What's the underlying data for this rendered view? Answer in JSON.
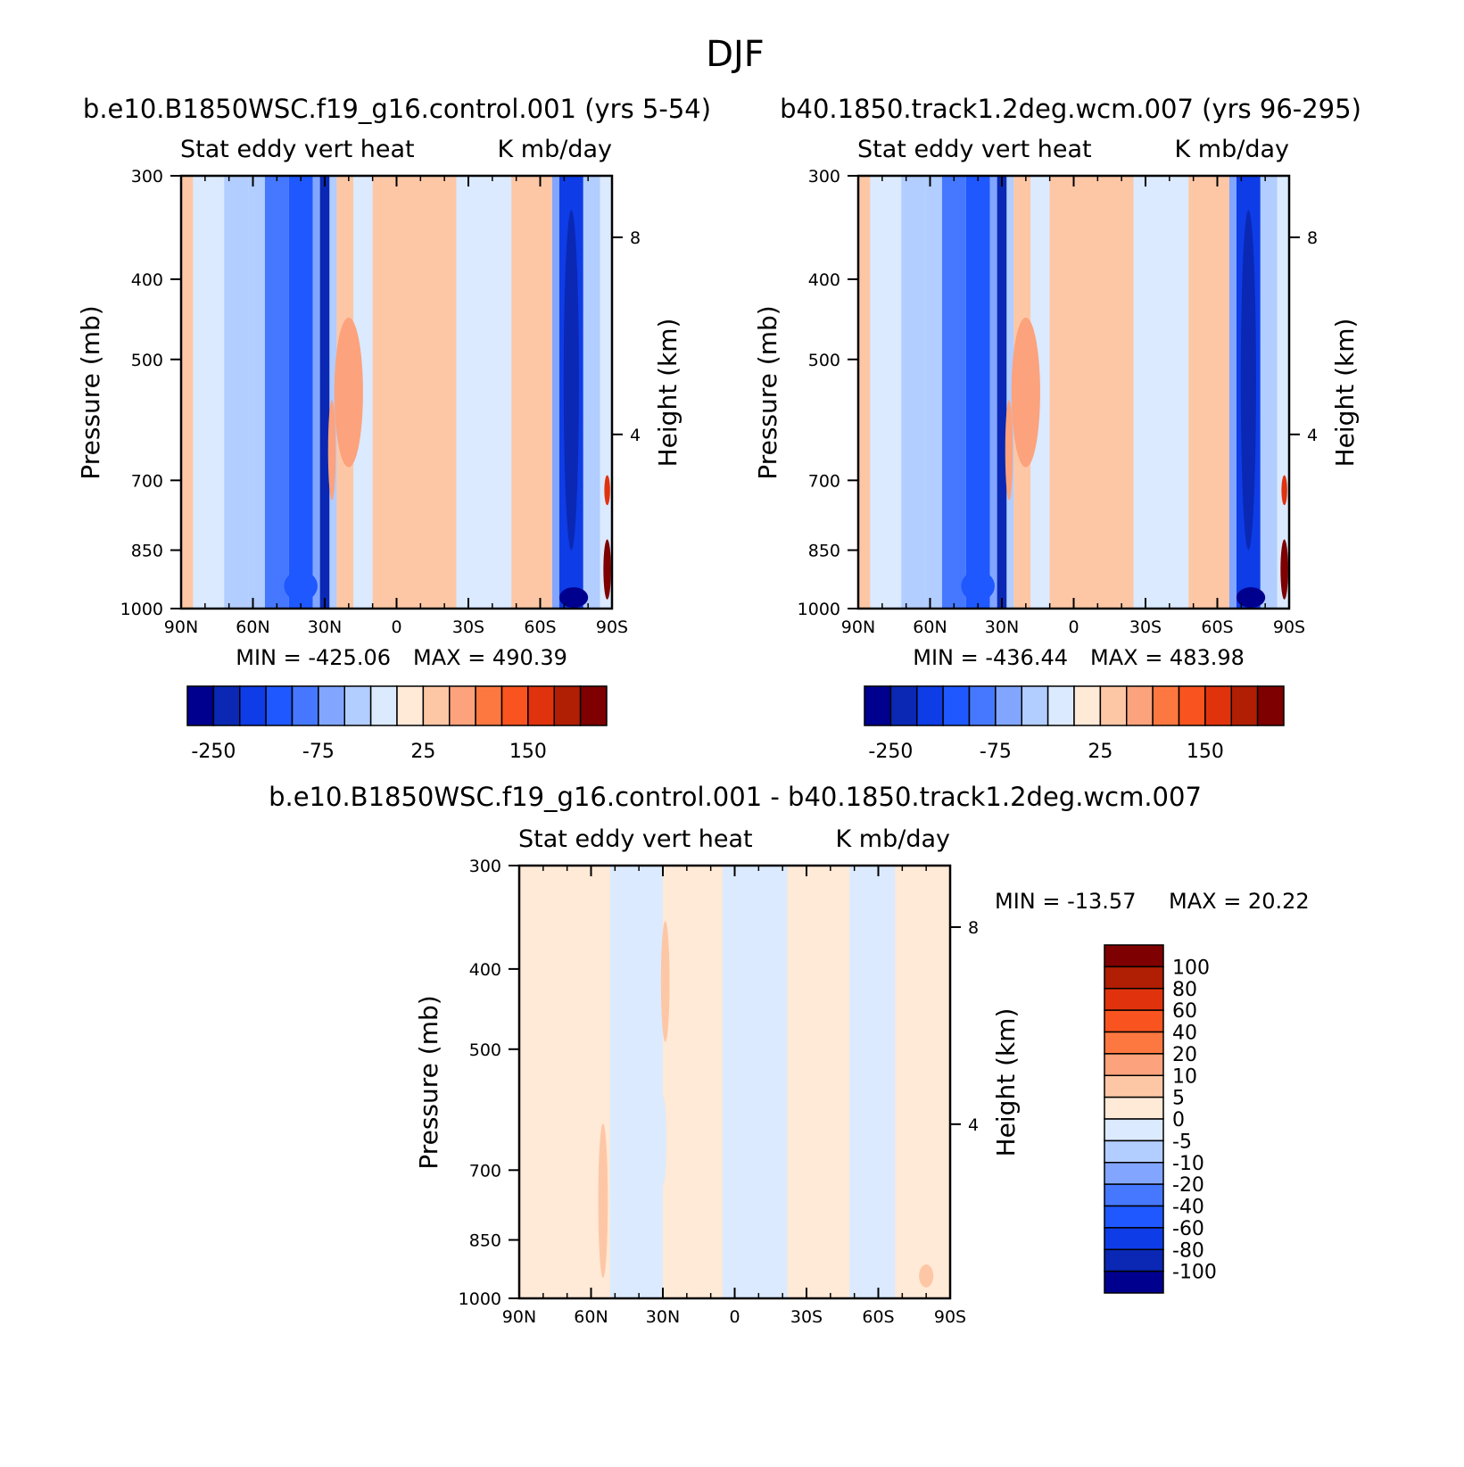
{
  "figure_title": "DJF",
  "colors": {
    "frame": "#000000",
    "cb_full": [
      "#00008f",
      "#0a28b4",
      "#0e3ce6",
      "#1f58ff",
      "#4678ff",
      "#82a6ff",
      "#b2cdff",
      "#dbeaff",
      "#ffe9d7",
      "#fdc7a6",
      "#fca27c",
      "#fd7840",
      "#f9541f",
      "#e0330d",
      "#b01e04",
      "#7e0000"
    ],
    "cb_diff": [
      "#00008f",
      "#0a28b4",
      "#0e3ce6",
      "#1f58ff",
      "#4678ff",
      "#82a6ff",
      "#b2cdff",
      "#dbeaff",
      "#ffe9d7",
      "#fdc7a6",
      "#fca27c",
      "#fd7840",
      "#f9541f",
      "#e0330d",
      "#b01e04",
      "#7e0000"
    ]
  },
  "chart_data": [
    {
      "id": "panel1",
      "type": "heatmap",
      "title": "b.e10.B1850WSC.f19_g16.control.001 (yrs 5-54)",
      "subtitle_left": "Stat eddy vert heat",
      "subtitle_right": "K mb/day",
      "ylabel": "Pressure (mb)",
      "ylabel_right": "Height (km)",
      "x_ticks": [
        "90N",
        "60N",
        "30N",
        "0",
        "30S",
        "60S",
        "90S"
      ],
      "x_range": [
        90,
        -90
      ],
      "y_ticks": [
        "300",
        "400",
        "500",
        "700",
        "850",
        "1000"
      ],
      "y_range": [
        300,
        1000
      ],
      "height_ticks": [
        "8",
        "4"
      ],
      "min_label": "MIN = -425.06",
      "max_label": "MAX = 490.39",
      "colorbar_labels": [
        "-250",
        "-75",
        "25",
        "150"
      ],
      "bands": [
        {
          "lat_from": 90,
          "lat_to": 85,
          "value": 10
        },
        {
          "lat_from": 85,
          "lat_to": 80,
          "value": -3
        },
        {
          "lat_from": 80,
          "lat_to": 72,
          "value": -5
        },
        {
          "lat_from": 72,
          "lat_to": 62,
          "value": -12
        },
        {
          "lat_from": 62,
          "lat_to": 55,
          "value": -20
        },
        {
          "lat_from": 55,
          "lat_to": 45,
          "value": -45
        },
        {
          "lat_from": 45,
          "lat_to": 35,
          "value": -80
        },
        {
          "lat_from": 35,
          "lat_to": 32,
          "value": -35
        },
        {
          "lat_from": 32,
          "lat_to": 28,
          "value": -200
        },
        {
          "lat_from": 28,
          "lat_to": 25,
          "value": -10
        },
        {
          "lat_from": 25,
          "lat_to": 18,
          "value": 8
        },
        {
          "lat_from": 18,
          "lat_to": 10,
          "value": -5
        },
        {
          "lat_from": 10,
          "lat_to": -25,
          "value": 10
        },
        {
          "lat_from": -25,
          "lat_to": -48,
          "value": -5
        },
        {
          "lat_from": -48,
          "lat_to": -65,
          "value": 10
        },
        {
          "lat_from": -65,
          "lat_to": -68,
          "value": -35
        },
        {
          "lat_from": -68,
          "lat_to": -78,
          "value": -150
        },
        {
          "lat_from": -78,
          "lat_to": -85,
          "value": -20
        },
        {
          "lat_from": -85,
          "lat_to": -90,
          "value": -5
        }
      ],
      "blobs": [
        {
          "lat": 20,
          "p": 560,
          "w_deg": 6,
          "h_mb": 230,
          "value": 45
        },
        {
          "lat": 27,
          "p": 650,
          "w_deg": 1.6,
          "h_mb": 180,
          "value": 60
        },
        {
          "lat": -73,
          "p": 590,
          "w_deg": 3.2,
          "h_mb": 520,
          "value": -250
        },
        {
          "lat": -74,
          "p": 970,
          "w_deg": 6,
          "h_mb": 55,
          "value": -330
        },
        {
          "lat": -88,
          "p": 900,
          "w_deg": 1.6,
          "h_mb": 150,
          "value": 300
        },
        {
          "lat": -88,
          "p": 720,
          "w_deg": 1.2,
          "h_mb": 60,
          "value": 150
        },
        {
          "lat": 40,
          "p": 940,
          "w_deg": 7,
          "h_mb": 80,
          "value": -120
        }
      ]
    },
    {
      "id": "panel2",
      "type": "heatmap",
      "title": "b40.1850.track1.2deg.wcm.007 (yrs 96-295)",
      "subtitle_left": "Stat eddy vert heat",
      "subtitle_right": "K mb/day",
      "ylabel": "Pressure (mb)",
      "ylabel_right": "Height (km)",
      "x_ticks": [
        "90N",
        "60N",
        "30N",
        "0",
        "30S",
        "60S",
        "90S"
      ],
      "x_range": [
        90,
        -90
      ],
      "y_ticks": [
        "300",
        "400",
        "500",
        "700",
        "850",
        "1000"
      ],
      "y_range": [
        300,
        1000
      ],
      "height_ticks": [
        "8",
        "4"
      ],
      "min_label": "MIN = -436.44",
      "max_label": "MAX = 483.98",
      "colorbar_labels": [
        "-250",
        "-75",
        "25",
        "150"
      ],
      "bands": [
        {
          "lat_from": 90,
          "lat_to": 85,
          "value": 10
        },
        {
          "lat_from": 85,
          "lat_to": 80,
          "value": -3
        },
        {
          "lat_from": 80,
          "lat_to": 72,
          "value": -5
        },
        {
          "lat_from": 72,
          "lat_to": 62,
          "value": -12
        },
        {
          "lat_from": 62,
          "lat_to": 55,
          "value": -20
        },
        {
          "lat_from": 55,
          "lat_to": 45,
          "value": -45
        },
        {
          "lat_from": 45,
          "lat_to": 35,
          "value": -80
        },
        {
          "lat_from": 35,
          "lat_to": 32,
          "value": -35
        },
        {
          "lat_from": 32,
          "lat_to": 28,
          "value": -200
        },
        {
          "lat_from": 28,
          "lat_to": 25,
          "value": -10
        },
        {
          "lat_from": 25,
          "lat_to": 18,
          "value": 8
        },
        {
          "lat_from": 18,
          "lat_to": 10,
          "value": -5
        },
        {
          "lat_from": 10,
          "lat_to": -25,
          "value": 10
        },
        {
          "lat_from": -25,
          "lat_to": -48,
          "value": -5
        },
        {
          "lat_from": -48,
          "lat_to": -65,
          "value": 10
        },
        {
          "lat_from": -65,
          "lat_to": -68,
          "value": -35
        },
        {
          "lat_from": -68,
          "lat_to": -78,
          "value": -150
        },
        {
          "lat_from": -78,
          "lat_to": -85,
          "value": -20
        },
        {
          "lat_from": -85,
          "lat_to": -90,
          "value": -5
        }
      ],
      "blobs": [
        {
          "lat": 20,
          "p": 560,
          "w_deg": 6,
          "h_mb": 230,
          "value": 45
        },
        {
          "lat": 27,
          "p": 650,
          "w_deg": 1.6,
          "h_mb": 180,
          "value": 60
        },
        {
          "lat": -73,
          "p": 590,
          "w_deg": 3.2,
          "h_mb": 520,
          "value": -250
        },
        {
          "lat": -74,
          "p": 970,
          "w_deg": 6,
          "h_mb": 55,
          "value": -330
        },
        {
          "lat": -88,
          "p": 900,
          "w_deg": 1.6,
          "h_mb": 150,
          "value": 300
        },
        {
          "lat": -88,
          "p": 720,
          "w_deg": 1.2,
          "h_mb": 60,
          "value": 150
        },
        {
          "lat": 40,
          "p": 940,
          "w_deg": 7,
          "h_mb": 80,
          "value": -120
        }
      ]
    },
    {
      "id": "panel3",
      "type": "heatmap",
      "title": "b.e10.B1850WSC.f19_g16.control.001 - b40.1850.track1.2deg.wcm.007",
      "subtitle_left": "Stat eddy vert heat",
      "subtitle_right": "K mb/day",
      "ylabel": "Pressure (mb)",
      "ylabel_right": "Height (km)",
      "x_ticks": [
        "90N",
        "60N",
        "30N",
        "0",
        "30S",
        "60S",
        "90S"
      ],
      "x_range": [
        90,
        -90
      ],
      "y_ticks": [
        "300",
        "400",
        "500",
        "700",
        "850",
        "1000"
      ],
      "y_range": [
        300,
        1000
      ],
      "height_ticks": [
        "8",
        "4"
      ],
      "min_label": "MIN = -13.57",
      "max_label": "MAX = 20.22",
      "colorbar_labels": [
        "100",
        "80",
        "60",
        "40",
        "20",
        "10",
        "5",
        "0",
        "-5",
        "-10",
        "-20",
        "-40",
        "-60",
        "-80",
        "-100"
      ],
      "bands": [
        {
          "lat_from": 90,
          "lat_to": 52,
          "value": 2
        },
        {
          "lat_from": 52,
          "lat_to": 38,
          "value": -2
        },
        {
          "lat_from": 38,
          "lat_to": 30,
          "value": -3
        },
        {
          "lat_from": 30,
          "lat_to": 25,
          "value": 3
        },
        {
          "lat_from": 25,
          "lat_to": 5,
          "value": 2
        },
        {
          "lat_from": 5,
          "lat_to": -22,
          "value": -2
        },
        {
          "lat_from": -22,
          "lat_to": -48,
          "value": 2
        },
        {
          "lat_from": -48,
          "lat_to": -67,
          "value": -2
        },
        {
          "lat_from": -67,
          "lat_to": -90,
          "value": 2
        }
      ],
      "blobs": [
        {
          "lat": 29,
          "p": 420,
          "w_deg": 1.8,
          "h_mb": 140,
          "value": 7
        },
        {
          "lat": 55,
          "p": 780,
          "w_deg": 2,
          "h_mb": 330,
          "value": 6
        },
        {
          "lat": -80,
          "p": 940,
          "w_deg": 3,
          "h_mb": 60,
          "value": 8
        },
        {
          "lat": 30,
          "p": 650,
          "w_deg": 1.5,
          "h_mb": 160,
          "value": -4
        }
      ]
    }
  ]
}
